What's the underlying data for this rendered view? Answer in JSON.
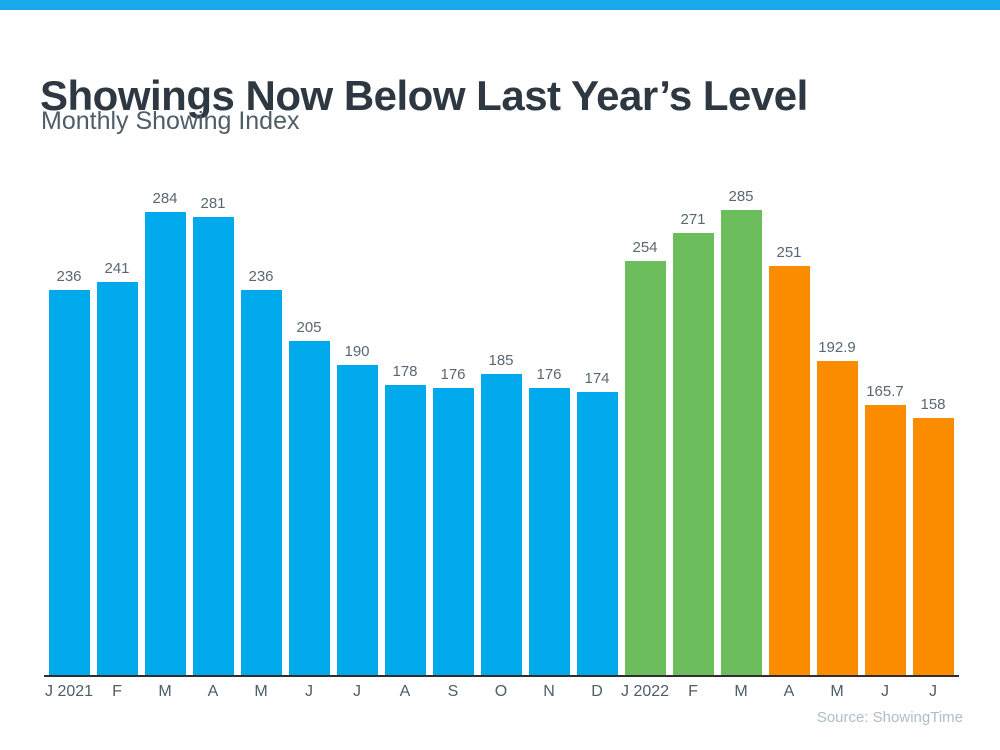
{
  "page": {
    "title": "Showings Now Below Last Year’s Level",
    "subtitle": "Monthly Showing Index",
    "source": "Source: ShowingTime"
  },
  "chart_data": {
    "type": "bar",
    "title": "Showings Now Below Last Year’s Level",
    "subtitle": "Monthly Showing Index",
    "xlabel": "",
    "ylabel": "",
    "ylim": [
      0,
      300
    ],
    "grid": false,
    "legend_position": "none",
    "data_labels": "above bars",
    "source": "Source: ShowingTime",
    "palette": {
      "blue": "#00a8ec",
      "green": "#6cbe5c",
      "orange": "#fb8c00",
      "top_strip": "#17a9ec",
      "axis": "#2e2e2e",
      "title_text": "#2e3842",
      "label_text": "#5a6772",
      "source_text": "#aebdc8"
    },
    "categories": [
      "J 2021",
      "F",
      "M",
      "A",
      "M",
      "J",
      "J",
      "A",
      "S",
      "O",
      "N",
      "D",
      "J 2022",
      "F",
      "M",
      "A",
      "M",
      "J",
      "J"
    ],
    "values": [
      236,
      241,
      284,
      281,
      236,
      205,
      190,
      178,
      176,
      185,
      176,
      174,
      254,
      271,
      285,
      251,
      192.9,
      165.7,
      158
    ],
    "bar_colors": [
      "blue",
      "blue",
      "blue",
      "blue",
      "blue",
      "blue",
      "blue",
      "blue",
      "blue",
      "blue",
      "blue",
      "blue",
      "green",
      "green",
      "green",
      "orange",
      "orange",
      "orange",
      "orange"
    ]
  }
}
